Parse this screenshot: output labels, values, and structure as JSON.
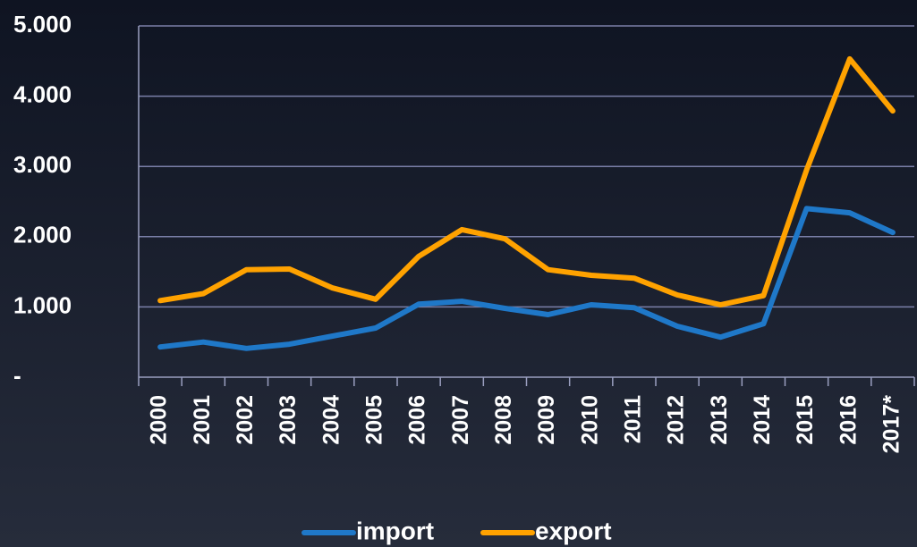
{
  "chart_data": {
    "type": "line",
    "categories": [
      "2000",
      "2001",
      "2002",
      "2003",
      "2004",
      "2005",
      "2006",
      "2007",
      "2008",
      "2009",
      "2010",
      "2011",
      "2012",
      "2013",
      "2014",
      "2015",
      "2016",
      "2017*"
    ],
    "series": [
      {
        "name": "import",
        "color": "#1f78c8",
        "values": [
          430,
          500,
          410,
          470,
          585,
          700,
          1040,
          1080,
          980,
          890,
          1030,
          990,
          725,
          570,
          760,
          2400,
          2340,
          2060
        ]
      },
      {
        "name": "export",
        "color": "#ffa200",
        "values": [
          1090,
          1190,
          1530,
          1540,
          1270,
          1110,
          1720,
          2100,
          1970,
          1530,
          1450,
          1410,
          1170,
          1030,
          1160,
          2950,
          4530,
          3790
        ]
      }
    ],
    "ylim": [
      0,
      5000
    ],
    "yticks": [
      {
        "value": 0,
        "label": "-"
      },
      {
        "value": 1000,
        "label": "1.000"
      },
      {
        "value": 2000,
        "label": "2.000"
      },
      {
        "value": 3000,
        "label": "3.000"
      },
      {
        "value": 4000,
        "label": "4.000"
      },
      {
        "value": 5000,
        "label": "5.000"
      }
    ],
    "grid": true,
    "legend": "bottom"
  }
}
